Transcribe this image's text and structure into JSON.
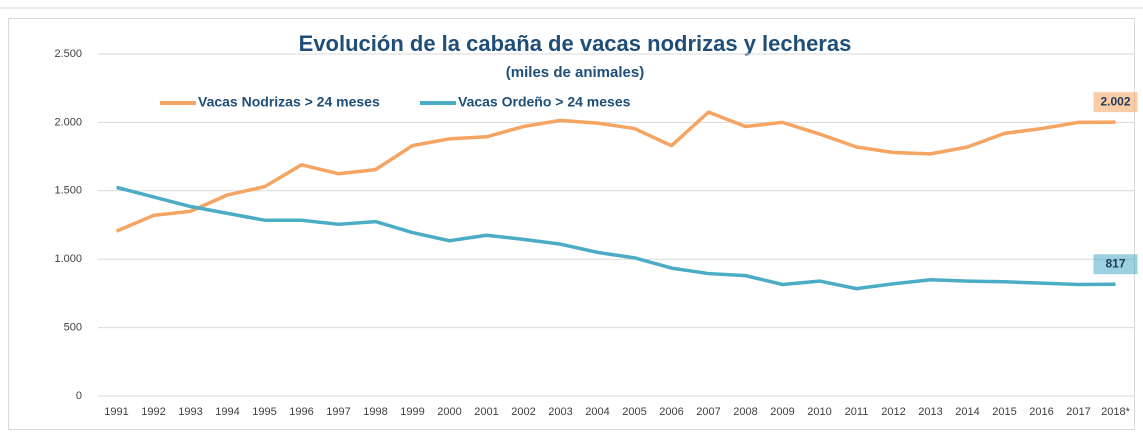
{
  "chart_data": {
    "type": "line",
    "title": "Evolución de la cabaña de vacas nodrizas y lecheras",
    "subtitle": "(miles de animales)",
    "categories": [
      "1991",
      "1992",
      "1993",
      "1994",
      "1995",
      "1996",
      "1997",
      "1998",
      "1999",
      "2000",
      "2001",
      "2002",
      "2003",
      "2004",
      "2005",
      "2006",
      "2007",
      "2008",
      "2009",
      "2010",
      "2011",
      "2012",
      "2013",
      "2014",
      "2015",
      "2016",
      "2017",
      "2018*"
    ],
    "series": [
      {
        "name": "Vacas Nodrizas > 24 meses",
        "color": "#f5a462",
        "values": [
          1205,
          1320,
          1350,
          1470,
          1530,
          1690,
          1625,
          1655,
          1830,
          1880,
          1895,
          1970,
          2015,
          1995,
          1955,
          1830,
          2075,
          1970,
          2000,
          1915,
          1820,
          1780,
          1770,
          1820,
          1920,
          1955,
          2000,
          2002
        ],
        "value_labels": [
          null,
          null,
          null,
          null,
          null,
          null,
          null,
          null,
          null,
          null,
          null,
          null,
          null,
          null,
          null,
          null,
          null,
          null,
          null,
          null,
          null,
          null,
          null,
          null,
          null,
          null,
          null,
          "2.002"
        ]
      },
      {
        "name": "Vacas Ordeño > 24 meses",
        "color": "#4bacc6",
        "values": [
          1525,
          1455,
          1385,
          1335,
          1285,
          1285,
          1255,
          1275,
          1195,
          1135,
          1175,
          1145,
          1110,
          1050,
          1010,
          935,
          895,
          880,
          815,
          840,
          785,
          820,
          850,
          840,
          835,
          825,
          815,
          817
        ],
        "value_labels": [
          null,
          null,
          null,
          null,
          null,
          null,
          null,
          null,
          null,
          null,
          null,
          null,
          null,
          null,
          null,
          null,
          null,
          null,
          null,
          null,
          null,
          null,
          null,
          null,
          null,
          null,
          null,
          "817"
        ]
      }
    ],
    "ylim": [
      0,
      2500
    ],
    "yticks": [
      0,
      {
        "value": 500,
        "label": "500"
      },
      {
        "value": 1000,
        "label": "1.000"
      },
      {
        "value": 1500,
        "label": "1.500"
      },
      {
        "value": 2000,
        "label": "2.000"
      },
      {
        "value": 2500,
        "label": "2.500"
      }
    ],
    "grid": true
  }
}
